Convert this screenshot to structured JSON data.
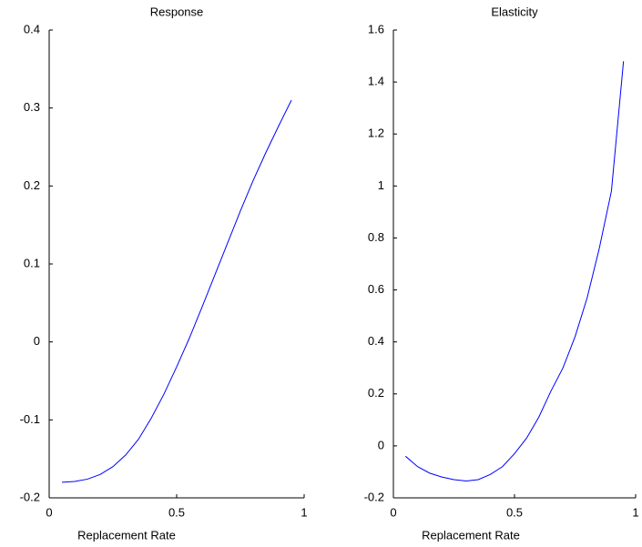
{
  "chart_data": [
    {
      "type": "line",
      "title": "Response",
      "xlabel": "Replacement Rate",
      "x": [
        0.05,
        0.1,
        0.15,
        0.2,
        0.25,
        0.3,
        0.35,
        0.4,
        0.45,
        0.5,
        0.55,
        0.6,
        0.65,
        0.7,
        0.75,
        0.8,
        0.85,
        0.9,
        0.95
      ],
      "series": [
        {
          "color": "#0000ff",
          "values": [
            -0.18,
            -0.179,
            -0.176,
            -0.17,
            -0.16,
            -0.145,
            -0.125,
            -0.098,
            -0.067,
            -0.032,
            0.005,
            0.045,
            0.086,
            0.127,
            0.168,
            0.207,
            0.243,
            0.277,
            0.31
          ]
        }
      ],
      "xlim": [
        0,
        1
      ],
      "xticks": [
        0,
        0.5,
        1
      ],
      "ylim": [
        -0.2,
        0.4
      ],
      "yticks": [
        -0.2,
        -0.1,
        0,
        0.1,
        0.2,
        0.3,
        0.4
      ]
    },
    {
      "type": "line",
      "title": "Elasticity",
      "xlabel": "Replacement Rate",
      "x": [
        0.05,
        0.1,
        0.15,
        0.2,
        0.25,
        0.3,
        0.35,
        0.4,
        0.45,
        0.5,
        0.55,
        0.6,
        0.65,
        0.7,
        0.75,
        0.8,
        0.85,
        0.9,
        0.95
      ],
      "series": [
        {
          "color": "#0000ff",
          "values": [
            -0.04,
            -0.08,
            -0.105,
            -0.12,
            -0.13,
            -0.135,
            -0.13,
            -0.11,
            -0.08,
            -0.03,
            0.03,
            0.11,
            0.21,
            0.3,
            0.42,
            0.57,
            0.76,
            0.98,
            1.48
          ]
        }
      ],
      "xlim": [
        0,
        1
      ],
      "xticks": [
        0,
        0.5,
        1
      ],
      "ylim": [
        -0.2,
        1.6
      ],
      "yticks": [
        -0.2,
        0,
        0.2,
        0.4,
        0.6,
        0.8,
        1,
        1.2,
        1.4,
        1.6
      ]
    }
  ]
}
